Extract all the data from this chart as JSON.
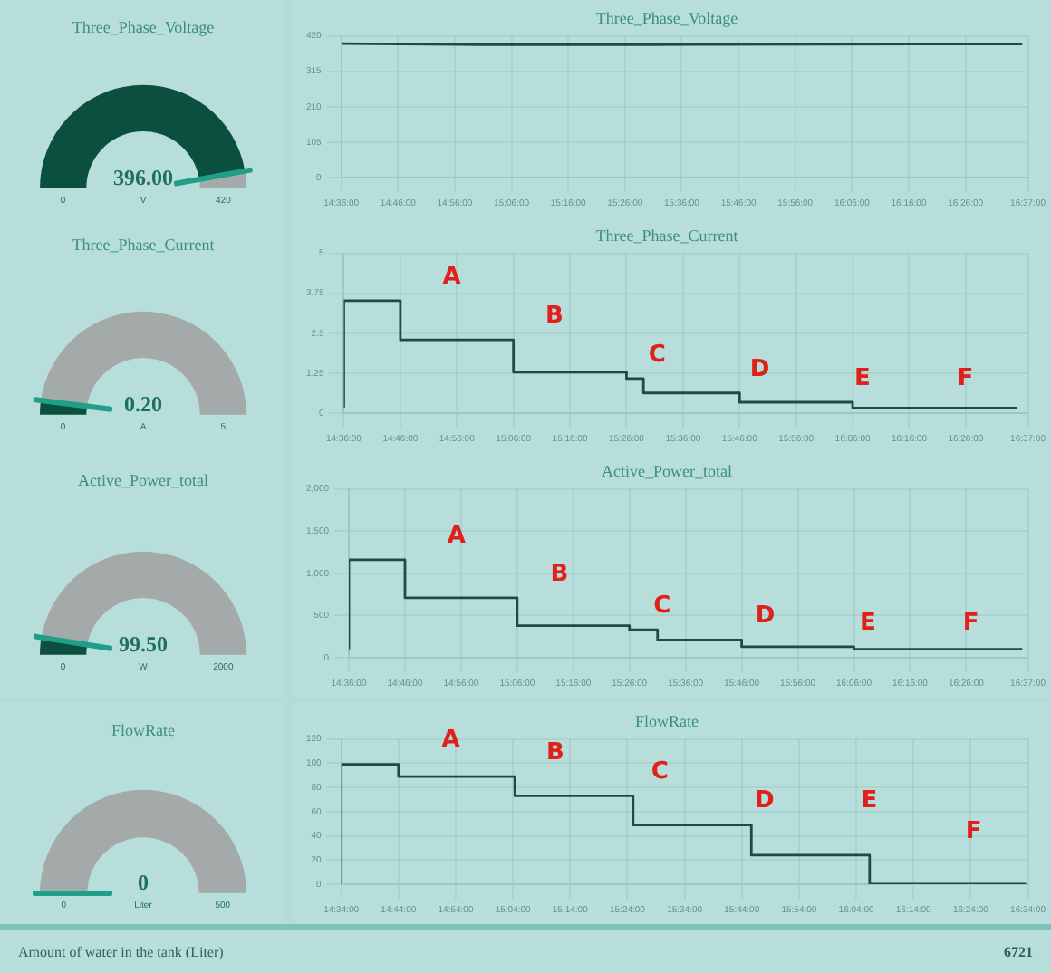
{
  "chart_data": [
    {
      "type": "donut",
      "title": "Three_Phase_Voltage",
      "categories": [
        null,
        null
      ],
      "values": [
        94.29,
        5.71
      ],
      "colors": [
        "#0b4f3e",
        "#a3aaa9"
      ],
      "annotations": [
        "396.00",
        "V",
        "0",
        "420"
      ]
    },
    {
      "type": "line",
      "title": "Three_Phase_Voltage",
      "x": [
        14.6,
        15.0,
        15.5,
        16.0,
        16.6
      ],
      "values": [
        397,
        394,
        394,
        395,
        396
      ],
      "color": "#1e4a40",
      "xlim": [
        14.6,
        16.6167
      ],
      "xticks": [
        {
          "value": 14.6,
          "label": "14:36:00"
        },
        {
          "value": 14.7667,
          "label": "14:46:00"
        },
        {
          "value": 14.9333,
          "label": "14:56:00"
        },
        {
          "value": 15.1,
          "label": "15:06:00"
        },
        {
          "value": 15.2667,
          "label": "15:16:00"
        },
        {
          "value": 15.4333,
          "label": "15:26:00"
        },
        {
          "value": 15.6,
          "label": "15:36:00"
        },
        {
          "value": 15.7667,
          "label": "15:46:00"
        },
        {
          "value": 15.9333,
          "label": "15:56:00"
        },
        {
          "value": 16.1,
          "label": "16:06:00"
        },
        {
          "value": 16.2667,
          "label": "16:16:00"
        },
        {
          "value": 16.4333,
          "label": "16:26:00"
        },
        {
          "value": 16.6167,
          "label": "16:37:00"
        }
      ],
      "ylim": [
        0,
        420
      ],
      "yticks": [
        0,
        105,
        210,
        315,
        420
      ],
      "grid": true,
      "legend": false,
      "marker": "none"
    },
    {
      "type": "donut",
      "title": "Three_Phase_Current",
      "categories": [
        null,
        null
      ],
      "values": [
        4,
        96
      ],
      "colors": [
        "#0b4f3e",
        "#a3aaa9"
      ],
      "annotations": [
        "0.20",
        "A",
        "0",
        "5"
      ]
    },
    {
      "type": "step",
      "title": "Three_Phase_Current",
      "x": [
        14.6,
        14.7667,
        15.1,
        15.4333,
        15.4833,
        15.7667,
        16.1,
        16.45,
        16.5833
      ],
      "values": [
        0.18,
        3.52,
        2.29,
        1.28,
        1.08,
        0.63,
        0.34,
        0.16,
        0.16
      ],
      "color": "#1e4a40",
      "xlim": [
        14.6,
        16.6167
      ],
      "xticks": [
        {
          "value": 14.6,
          "label": "14:36:00"
        },
        {
          "value": 14.7667,
          "label": "14:46:00"
        },
        {
          "value": 14.9333,
          "label": "14:56:00"
        },
        {
          "value": 15.1,
          "label": "15:06:00"
        },
        {
          "value": 15.2667,
          "label": "15:16:00"
        },
        {
          "value": 15.4333,
          "label": "15:26:00"
        },
        {
          "value": 15.6,
          "label": "15:36:00"
        },
        {
          "value": 15.7667,
          "label": "15:46:00"
        },
        {
          "value": 15.9333,
          "label": "15:56:00"
        },
        {
          "value": 16.1,
          "label": "16:06:00"
        },
        {
          "value": 16.2667,
          "label": "16:16:00"
        },
        {
          "value": 16.4333,
          "label": "16:26:00"
        },
        {
          "value": 16.6167,
          "label": "16:37:00"
        }
      ],
      "ylim": [
        0,
        5
      ],
      "yticks": [
        0,
        1.25,
        2.5,
        3.75,
        5
      ],
      "grid": true,
      "legend": false,
      "marker": "none",
      "annotations": [
        "A",
        "B",
        "C",
        "D",
        "E",
        "F"
      ]
    },
    {
      "type": "donut",
      "title": "Active_Power_total",
      "categories": [
        null,
        null
      ],
      "values": [
        4.98,
        95.02
      ],
      "colors": [
        "#0b4f3e",
        "#a3aaa9"
      ],
      "annotations": [
        "99.50",
        "W",
        "0",
        "2000"
      ]
    },
    {
      "type": "step",
      "title": "Active_Power_total",
      "x": [
        14.6,
        14.7667,
        15.1,
        15.4333,
        15.5167,
        15.7667,
        16.1,
        16.45,
        16.6
      ],
      "values": [
        100,
        1160,
        710,
        380,
        330,
        210,
        130,
        100,
        100
      ],
      "color": "#1e4a40",
      "xlim": [
        14.6,
        16.6167
      ],
      "xticks": [
        {
          "value": 14.6,
          "label": "14:36:00"
        },
        {
          "value": 14.7667,
          "label": "14:46:00"
        },
        {
          "value": 14.9333,
          "label": "14:56:00"
        },
        {
          "value": 15.1,
          "label": "15:06:00"
        },
        {
          "value": 15.2667,
          "label": "15:16:00"
        },
        {
          "value": 15.4333,
          "label": "15:26:00"
        },
        {
          "value": 15.6,
          "label": "15:36:00"
        },
        {
          "value": 15.7667,
          "label": "15:46:00"
        },
        {
          "value": 15.9333,
          "label": "15:56:00"
        },
        {
          "value": 16.1,
          "label": "16:06:00"
        },
        {
          "value": 16.2667,
          "label": "16:16:00"
        },
        {
          "value": 16.4333,
          "label": "16:26:00"
        },
        {
          "value": 16.6167,
          "label": "16:37:00"
        }
      ],
      "ylim": [
        0,
        2000
      ],
      "yticks": [
        {
          "value": 0,
          "label": "0"
        },
        {
          "value": 500,
          "label": "500"
        },
        {
          "value": 1000,
          "label": "1,000"
        },
        {
          "value": 1500,
          "label": "1,500"
        },
        {
          "value": 2000,
          "label": "2,000"
        }
      ],
      "grid": true,
      "legend": false,
      "marker": "none",
      "annotations": [
        "A",
        "B",
        "C",
        "D",
        "E",
        "F"
      ]
    },
    {
      "type": "pie",
      "title": "FlowRate",
      "categories": [
        null,
        null
      ],
      "values": [
        0,
        100
      ],
      "colors": [
        "#0b4f3e",
        "#a3aaa9"
      ],
      "annotations": [
        "0",
        "Liter",
        "0",
        "500"
      ]
    },
    {
      "type": "step",
      "title": "FlowRate",
      "x": [
        14.5667,
        14.7333,
        15.0722,
        15.4167,
        15.7611,
        16.1056,
        16.4417,
        16.5611
      ],
      "values": [
        0,
        99,
        89,
        73,
        49,
        24,
        0,
        0
      ],
      "color": "#1e4a40",
      "xlim": [
        14.5667,
        16.5667
      ],
      "xticks": [
        {
          "value": 14.5667,
          "label": "14:34:00"
        },
        {
          "value": 14.7333,
          "label": "14:44:00"
        },
        {
          "value": 14.9,
          "label": "14:54:00"
        },
        {
          "value": 15.0667,
          "label": "15:04:00"
        },
        {
          "value": 15.2333,
          "label": "15:14:00"
        },
        {
          "value": 15.4,
          "label": "15:24:00"
        },
        {
          "value": 15.5667,
          "label": "15:34:00"
        },
        {
          "value": 15.7333,
          "label": "15:44:00"
        },
        {
          "value": 15.9,
          "label": "15:54:00"
        },
        {
          "value": 16.0667,
          "label": "16:04:00"
        },
        {
          "value": 16.2333,
          "label": "16:14:00"
        },
        {
          "value": 16.4,
          "label": "16:24:00"
        },
        {
          "value": 16.5667,
          "label": "16:34:00"
        }
      ],
      "ylim": [
        0,
        120
      ],
      "yticks": [
        0,
        20,
        40,
        60,
        80,
        100,
        120
      ],
      "grid": true,
      "legend": false,
      "marker": "none",
      "annotations": [
        "A",
        "B",
        "C",
        "D",
        "E",
        "F"
      ]
    },
    {
      "type": "other",
      "annotations": [
        "Amount of water in the tank (Liter)",
        "6721"
      ]
    }
  ]
}
